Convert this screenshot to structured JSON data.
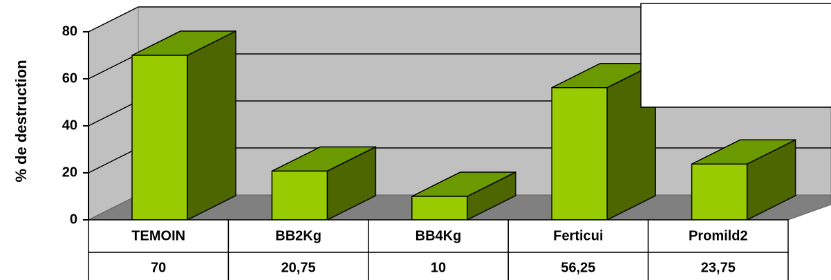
{
  "chart_data": {
    "type": "bar3d",
    "y_label": "% de destruction",
    "categories": [
      "TEMOIN",
      "BB2Kg",
      "BB4Kg",
      "Ferticui",
      "Promild2"
    ],
    "values": [
      70,
      20.75,
      10,
      56.25,
      23.75
    ],
    "value_labels": [
      "70",
      "20,75",
      "10",
      "56,25",
      "23,75"
    ],
    "color": "#99cc00",
    "ylim": [
      0,
      80
    ],
    "yticks": [
      0,
      20,
      40,
      60,
      80
    ],
    "grid": true
  }
}
